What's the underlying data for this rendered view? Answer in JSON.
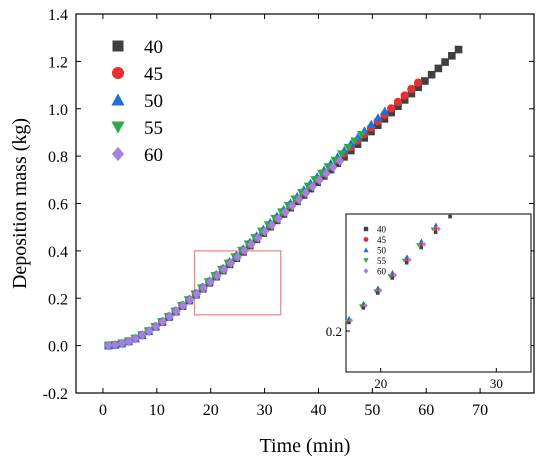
{
  "chart_data": {
    "type": "scatter",
    "xlabel": "Time (min)",
    "ylabel": "Deposition mass (kg)",
    "xlim": [
      -5,
      80
    ],
    "ylim": [
      -0.2,
      1.4
    ],
    "xticks": [
      "0",
      "10",
      "20",
      "30",
      "40",
      "50",
      "60",
      "70"
    ],
    "yticks": [
      "-0.2",
      "0.0",
      "0.2",
      "0.4",
      "0.6",
      "0.8",
      "1.0",
      "1.2",
      "1.4"
    ],
    "legend_position": "top-left",
    "series": [
      {
        "name": "40",
        "marker": "square",
        "color": "#404040",
        "t_end": 66,
        "m_end": 1.25
      },
      {
        "name": "45",
        "marker": "circle",
        "color": "#e83030",
        "t_end": 58.5,
        "m_end": 1.11
      },
      {
        "name": "50",
        "marker": "triangle-up",
        "color": "#1f6fe0",
        "t_end": 52.3,
        "m_end": 0.99
      },
      {
        "name": "55",
        "marker": "triangle-down",
        "color": "#2ea84a",
        "t_end": 48,
        "m_end": 0.89
      },
      {
        "name": "60",
        "marker": "diamond",
        "color": "#a77fe0",
        "t_end": 44,
        "m_end": 0.78
      }
    ],
    "highlight_box": {
      "x": [
        17,
        33
      ],
      "y": [
        0.13,
        0.4
      ]
    },
    "inset": {
      "xlim": [
        17,
        33
      ],
      "ylim": [
        0.13,
        0.4
      ],
      "xticks": [
        "20",
        "30"
      ],
      "yticks": [
        "0.2"
      ],
      "legend": [
        "40",
        "45",
        "50",
        "55",
        "60"
      ]
    }
  }
}
